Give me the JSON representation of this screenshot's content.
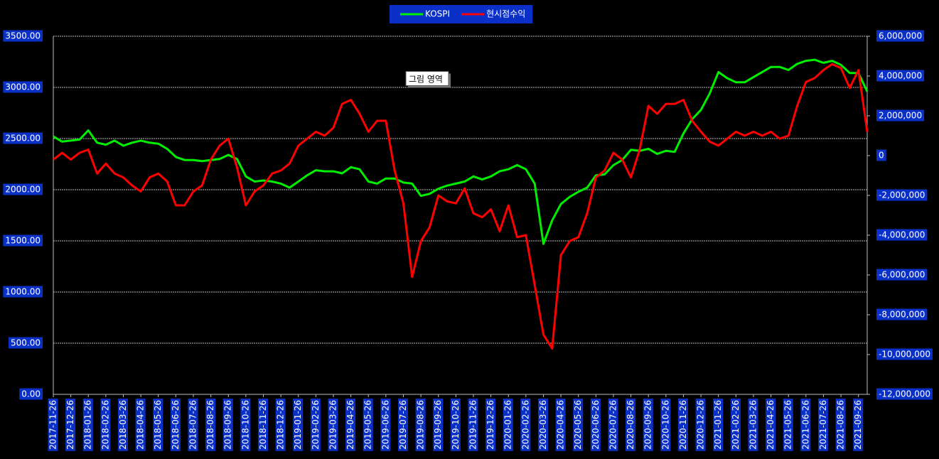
{
  "chart_data": {
    "type": "line",
    "categories": [
      "2017-11-26",
      null,
      "2017-12-26",
      null,
      "2018-01-26",
      null,
      "2018-02-26",
      null,
      "2018-03-26",
      null,
      "2018-04-26",
      null,
      "2018-05-26",
      null,
      "2018-06-26",
      null,
      "2018-07-26",
      null,
      "2018-08-26",
      null,
      "2018-09-26",
      null,
      "2018-10-26",
      null,
      "2018-11-26",
      null,
      "2018-12-26",
      null,
      "2019-01-26",
      null,
      "2019-02-26",
      null,
      "2019-03-26",
      null,
      "2019-04-26",
      null,
      "2019-05-26",
      null,
      "2019-06-26",
      null,
      "2019-07-26",
      null,
      "2019-08-26",
      null,
      "2019-09-26",
      null,
      "2019-10-26",
      null,
      "2019-11-26",
      null,
      "2019-12-26",
      null,
      "2020-01-26",
      null,
      "2020-02-26",
      null,
      "2020-03-26",
      null,
      "2020-04-26",
      null,
      "2020-05-26",
      null,
      "2020-06-26",
      null,
      "2020-07-26",
      null,
      "2020-08-26",
      null,
      "2020-09-26",
      null,
      "2020-10-26",
      null,
      "2020-11-26",
      null,
      "2020-12-26",
      null,
      "2021-01-26",
      null,
      "2021-02-26",
      null,
      "2021-03-26",
      null,
      "2021-04-26",
      null,
      "2021-05-26",
      null,
      "2021-06-26",
      null,
      "2021-07-26",
      null,
      "2021-08-26",
      null,
      "2021-09-26",
      null
    ],
    "series": [
      {
        "name": "KOSPI",
        "color": "#00ee00",
        "values": [
          2520,
          2470,
          2480,
          2490,
          2580,
          2460,
          2440,
          2480,
          2430,
          2460,
          2480,
          2460,
          2450,
          2400,
          2320,
          2290,
          2290,
          2280,
          2290,
          2300,
          2340,
          2300,
          2130,
          2080,
          2090,
          2080,
          2060,
          2020,
          2080,
          2140,
          2190,
          2180,
          2180,
          2160,
          2220,
          2200,
          2080,
          2060,
          2110,
          2110,
          2070,
          2060,
          1940,
          1960,
          2010,
          2040,
          2060,
          2080,
          2130,
          2100,
          2130,
          2180,
          2200,
          2240,
          2200,
          2060,
          1470,
          1700,
          1860,
          1930,
          1980,
          2020,
          2140,
          2150,
          2240,
          2290,
          2390,
          2380,
          2400,
          2350,
          2380,
          2370,
          2550,
          2690,
          2780,
          2940,
          3150,
          3090,
          3050,
          3050,
          3100,
          3150,
          3200,
          3200,
          3170,
          3230,
          3260,
          3270,
          3240,
          3260,
          3220,
          3140,
          3140,
          2960
        ]
      },
      {
        "name": "현시점수익",
        "color": "#ff0000",
        "axis": "y2",
        "values": [
          -200000,
          140000,
          -200000,
          140000,
          300000,
          -900000,
          -400000,
          -900000,
          -1100000,
          -1500000,
          -1800000,
          -1100000,
          -900000,
          -1300000,
          -2500000,
          -2500000,
          -1800000,
          -1500000,
          -200000,
          500000,
          850000,
          -600000,
          -2500000,
          -1800000,
          -1500000,
          -900000,
          -750000,
          -400000,
          500000,
          850000,
          1200000,
          1000000,
          1400000,
          2600000,
          2800000,
          2100000,
          1200000,
          1750000,
          1750000,
          -750000,
          -2400000,
          -6100000,
          -4300000,
          -3600000,
          -2000000,
          -2300000,
          -2400000,
          -1650000,
          -2900000,
          -3100000,
          -2700000,
          -3800000,
          -2500000,
          -4100000,
          -4000000,
          -6500000,
          -9000000,
          -9700000,
          -5000000,
          -4300000,
          -4100000,
          -2900000,
          -1100000,
          -750000,
          140000,
          -200000,
          -1100000,
          300000,
          2500000,
          2100000,
          2600000,
          2600000,
          2800000,
          1750000,
          1200000,
          700000,
          500000,
          850000,
          1200000,
          1000000,
          1200000,
          1000000,
          1200000,
          850000,
          1000000,
          2500000,
          3700000,
          3900000,
          4300000,
          4600000,
          4400000,
          3400000,
          4300000,
          1200000
        ]
      }
    ],
    "ylim": [
      0,
      3500
    ],
    "yticks": [
      {
        "value": 0,
        "label": "0.00"
      },
      {
        "value": 500,
        "label": "500.00"
      },
      {
        "value": 1000,
        "label": "1000.00"
      },
      {
        "value": 1500,
        "label": "1500.00"
      },
      {
        "value": 2000,
        "label": "2000.00"
      },
      {
        "value": 2500,
        "label": "2500.00"
      },
      {
        "value": 3000,
        "label": "3000.00"
      },
      {
        "value": 3500,
        "label": "3500.00"
      }
    ],
    "y2lim": [
      -12000000,
      6000000
    ],
    "y2ticks": [
      {
        "value": -12000000,
        "label": "-12,000,000"
      },
      {
        "value": -10000000,
        "label": "-10,000,000"
      },
      {
        "value": -8000000,
        "label": "-8,000,000"
      },
      {
        "value": -6000000,
        "label": "-6,000,000"
      },
      {
        "value": -4000000,
        "label": "-4,000,000"
      },
      {
        "value": -2000000,
        "label": "-2,000,000"
      },
      {
        "value": 0,
        "label": "0"
      },
      {
        "value": 2000000,
        "label": "2,000,000"
      },
      {
        "value": 4000000,
        "label": "4,000,000"
      },
      {
        "value": 6000000,
        "label": "6,000,000"
      }
    ],
    "grid": true,
    "legend": "top",
    "tooltip": "그림 영역"
  }
}
